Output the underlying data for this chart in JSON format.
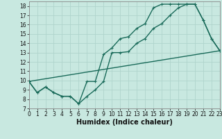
{
  "xlabel": "Humidex (Indice chaleur)",
  "bg_color": "#c8e8e0",
  "grid_color": "#b0d4cc",
  "line_color": "#1a6b5a",
  "xlim": [
    0,
    23
  ],
  "ylim": [
    7,
    18.5
  ],
  "xticks": [
    0,
    1,
    2,
    3,
    4,
    5,
    6,
    7,
    8,
    9,
    10,
    11,
    12,
    13,
    14,
    15,
    16,
    17,
    18,
    19,
    20,
    21,
    22,
    23
  ],
  "yticks": [
    7,
    8,
    9,
    10,
    11,
    12,
    13,
    14,
    15,
    16,
    17,
    18
  ],
  "line1_x": [
    0,
    1,
    2,
    3,
    4,
    5,
    6,
    7,
    8,
    9,
    10,
    11,
    12,
    13,
    14,
    15,
    16,
    17,
    18,
    19,
    20,
    21,
    22,
    23
  ],
  "line1_y": [
    9.9,
    8.7,
    9.3,
    8.7,
    8.3,
    8.3,
    7.5,
    8.3,
    9.0,
    9.9,
    13.0,
    13.0,
    13.1,
    14.0,
    14.5,
    15.6,
    16.1,
    17.0,
    17.8,
    18.2,
    18.2,
    16.5,
    14.5,
    13.2
  ],
  "line2_x": [
    0,
    1,
    2,
    3,
    4,
    5,
    6,
    7,
    8,
    9,
    10,
    11,
    12,
    13,
    14,
    15,
    16,
    17,
    18,
    19,
    20,
    21,
    22,
    23
  ],
  "line2_y": [
    9.9,
    8.7,
    9.3,
    8.7,
    8.3,
    8.3,
    7.5,
    9.9,
    9.9,
    12.8,
    13.5,
    14.5,
    14.7,
    15.6,
    16.1,
    17.8,
    18.2,
    18.2,
    18.2,
    18.2,
    18.2,
    16.5,
    14.5,
    13.2
  ],
  "line3_x": [
    0,
    23
  ],
  "line3_y": [
    9.9,
    13.2
  ],
  "marker_size": 2.5,
  "line_width": 1.0,
  "tick_fontsize": 5.5,
  "xlabel_fontsize": 7
}
